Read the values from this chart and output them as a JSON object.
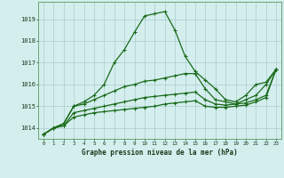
{
  "title": "Graphe pression niveau de la mer (hPa)",
  "background_color": "#d4eeee",
  "line_color": "#1a6b1a",
  "grid_color": "#aacccc",
  "hours": [
    0,
    1,
    2,
    3,
    4,
    5,
    6,
    7,
    8,
    9,
    10,
    11,
    12,
    13,
    14,
    15,
    16,
    17,
    18,
    19,
    20,
    21,
    22,
    23
  ],
  "series1": [
    1013.7,
    1014.0,
    1014.2,
    1015.0,
    1015.2,
    1015.5,
    1016.0,
    1017.0,
    1017.6,
    1018.4,
    1019.15,
    1019.25,
    1019.35,
    1018.5,
    1017.3,
    1016.6,
    1016.2,
    1015.8,
    1015.3,
    1015.2,
    1015.5,
    1016.0,
    1016.1,
    1016.7
  ],
  "series2": [
    1013.7,
    1014.0,
    1014.2,
    1015.0,
    1015.1,
    1015.3,
    1015.5,
    1015.7,
    1015.9,
    1016.0,
    1016.15,
    1016.2,
    1016.3,
    1016.4,
    1016.5,
    1016.5,
    1015.8,
    1015.3,
    1015.2,
    1015.1,
    1015.3,
    1015.5,
    1016.0,
    1016.7
  ],
  "series3": [
    1013.7,
    1014.0,
    1014.1,
    1014.7,
    1014.8,
    1014.9,
    1015.0,
    1015.1,
    1015.2,
    1015.3,
    1015.4,
    1015.45,
    1015.5,
    1015.55,
    1015.6,
    1015.65,
    1015.3,
    1015.1,
    1015.05,
    1015.1,
    1015.15,
    1015.3,
    1015.5,
    1016.7
  ],
  "series4": [
    1013.7,
    1014.0,
    1014.1,
    1014.5,
    1014.6,
    1014.7,
    1014.75,
    1014.8,
    1014.85,
    1014.9,
    1014.95,
    1015.0,
    1015.1,
    1015.15,
    1015.2,
    1015.25,
    1015.0,
    1014.95,
    1014.95,
    1015.0,
    1015.05,
    1015.2,
    1015.4,
    1016.7
  ],
  "ylim": [
    1013.5,
    1019.8
  ],
  "yticks": [
    1014,
    1015,
    1016,
    1017,
    1018,
    1019
  ],
  "xlim": [
    -0.5,
    23.5
  ],
  "linewidth": 0.9,
  "markersize": 3.0
}
